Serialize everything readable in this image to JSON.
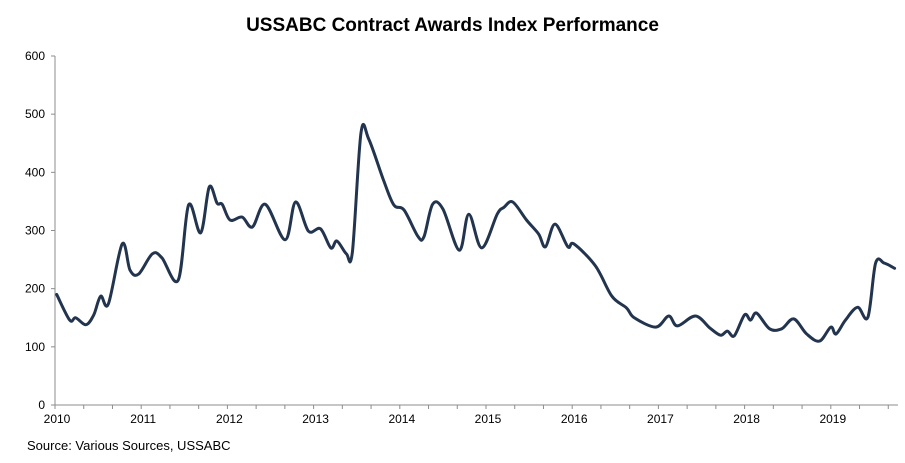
{
  "chart_data": {
    "type": "line",
    "title": "USSABC Contract Awards Index Performance",
    "xlabel": "",
    "ylabel": "",
    "source": "Source: Various Sources, USSABC",
    "ylim": [
      0,
      600
    ],
    "xlim": [
      2010.0,
      2019.8
    ],
    "yticks": [
      "0",
      "100",
      "200",
      "300",
      "400",
      "500",
      "600"
    ],
    "xticks": [
      "2010",
      "2011",
      "2012",
      "2013",
      "2014",
      "2015",
      "2016",
      "2017",
      "2018",
      "2019"
    ],
    "grid": false,
    "line_color": "#23344f",
    "series": [
      {
        "name": "USSABC Contract Awards Index",
        "x": [
          2010.02,
          2010.17,
          2010.24,
          2010.36,
          2010.45,
          2010.53,
          2010.62,
          2010.78,
          2010.87,
          2010.97,
          2011.13,
          2011.24,
          2011.43,
          2011.55,
          2011.69,
          2011.79,
          2011.88,
          2011.94,
          2012.03,
          2012.17,
          2012.29,
          2012.44,
          2012.67,
          2012.79,
          2012.94,
          2013.08,
          2013.2,
          2013.27,
          2013.38,
          2013.45,
          2013.55,
          2013.64,
          2013.81,
          2013.93,
          2014.05,
          2014.21,
          2014.28,
          2014.38,
          2014.5,
          2014.69,
          2014.8,
          2014.95,
          2015.13,
          2015.21,
          2015.31,
          2015.47,
          2015.61,
          2015.69,
          2015.8,
          2015.95,
          2016.02,
          2016.27,
          2016.46,
          2016.63,
          2016.72,
          2016.97,
          2017.12,
          2017.22,
          2017.43,
          2017.6,
          2017.72,
          2017.8,
          2017.88,
          2018.0,
          2018.07,
          2018.14,
          2018.29,
          2018.43,
          2018.57,
          2018.72,
          2018.87,
          2019.0,
          2019.06,
          2019.17,
          2019.31,
          2019.43,
          2019.52,
          2019.62,
          2019.74
        ],
        "y": [
          190,
          146,
          150,
          138,
          155,
          187,
          174,
          277,
          232,
          225,
          260,
          253,
          215,
          344,
          296,
          375,
          347,
          345,
          318,
          323,
          306,
          345,
          284,
          349,
          299,
          303,
          270,
          282,
          260,
          263,
          468,
          457,
          387,
          344,
          335,
          290,
          289,
          345,
          337,
          266,
          328,
          270,
          328,
          340,
          349,
          318,
          294,
          272,
          311,
          272,
          277,
          239,
          187,
          167,
          150,
          134,
          153,
          136,
          153,
          132,
          120,
          127,
          119,
          155,
          146,
          158,
          131,
          131,
          148,
          122,
          110,
          134,
          122,
          146,
          168,
          151,
          244,
          244,
          235
        ]
      }
    ]
  }
}
